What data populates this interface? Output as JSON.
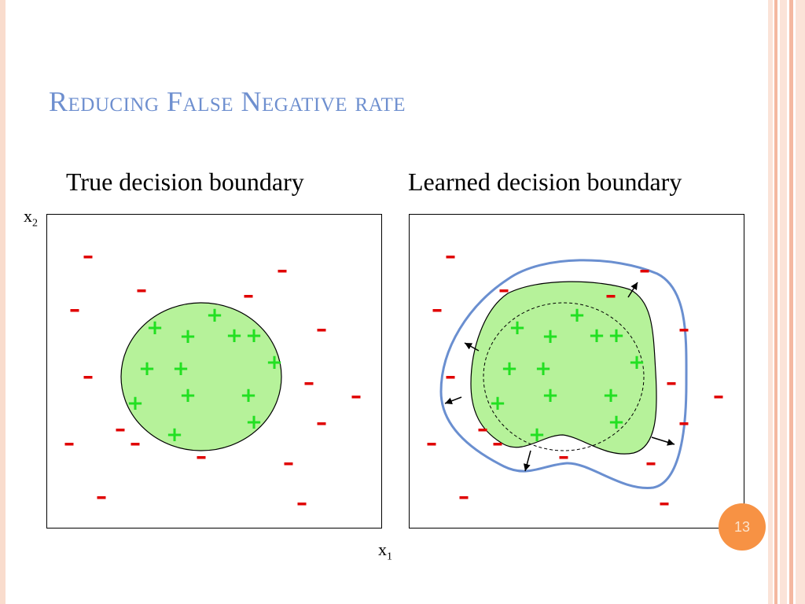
{
  "slide": {
    "title": "Reducing False Negative rate",
    "page_number": "13"
  },
  "axes": {
    "y_label_base": "x",
    "y_label_sub": "2",
    "x_label_base": "x",
    "x_label_sub": "1"
  },
  "left_panel": {
    "caption": "True decision boundary",
    "boundary_type": "circle",
    "positive_symbol": "+",
    "negative_symbol": "–",
    "positive_color": "#22e022",
    "negative_color": "#e00000",
    "region_fill": "#b6f29a"
  },
  "right_panel": {
    "caption": "Learned decision boundary",
    "learned_boundary_fill": "#b6f29a",
    "expanded_boundary_color": "#6a8fd0",
    "true_boundary_style": "dashed",
    "arrow_icon": "outward-arrow-icon"
  },
  "colors": {
    "title": "#6e8fcf",
    "band_light": "#fbe3d8",
    "band_mid": "#f4b8a0",
    "page_badge": "#f79244"
  }
}
